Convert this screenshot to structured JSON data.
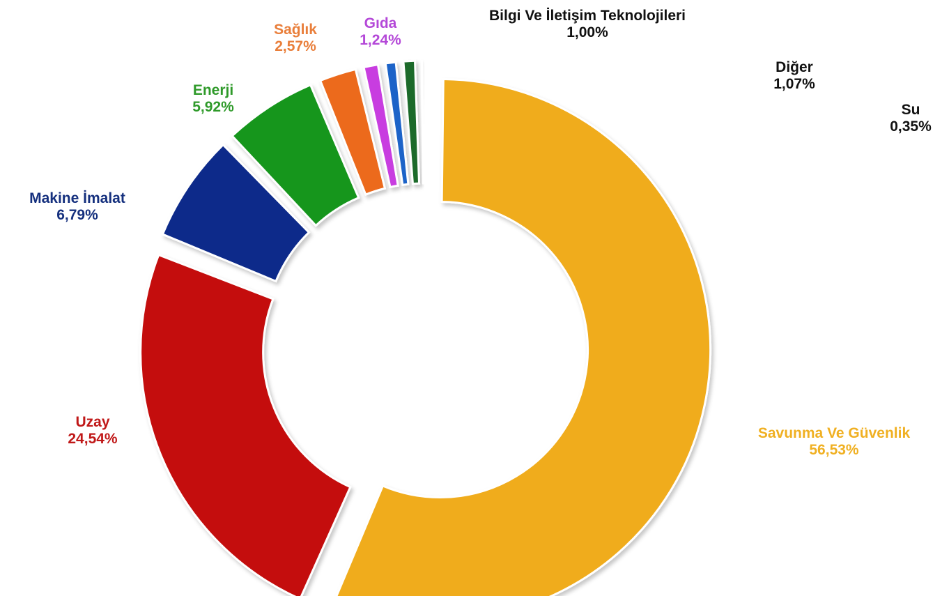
{
  "chart_data": {
    "type": "pie",
    "variant": "donut-exploded",
    "title": "",
    "slices": [
      {
        "label": "Savunma Ve Güvenlik",
        "value_text": "56,53%",
        "value": 56.53,
        "color": "#F0AC1E",
        "label_color": "#F0B022"
      },
      {
        "label": "Uzay",
        "value_text": "24,54%",
        "value": 24.54,
        "color": "#C40F0F",
        "label_color": "#C01818"
      },
      {
        "label": "Makine İmalat",
        "value_text": "6,79%",
        "value": 6.79,
        "color": "#0C2A8A",
        "label_color": "#15307E"
      },
      {
        "label": "Enerji",
        "value_text": "5,92%",
        "value": 5.92,
        "color": "#12961E",
        "label_color": "#2F9A2A"
      },
      {
        "label": "Sağlık",
        "value_text": "2,57%",
        "value": 2.57,
        "color": "#EC6A1C",
        "label_color": "#E97E3A"
      },
      {
        "label": "Gıda",
        "value_text": "1,24%",
        "value": 1.24,
        "color": "#C83CE0",
        "label_color": "#B448D8"
      },
      {
        "label": "Bilgi Ve İletişim Teknolojileri",
        "value_text": "1,00%",
        "value": 1.0,
        "color": "#1E64C8",
        "label_color": "#111111"
      },
      {
        "label": "Diğer",
        "value_text": "1,07%",
        "value": 1.07,
        "color": "#1F6B2A",
        "label_color": "#111111"
      },
      {
        "label": "Su",
        "value_text": "0,35%",
        "value": 0.35,
        "color": "#2A8A5A",
        "label_color": "#111111"
      }
    ]
  }
}
